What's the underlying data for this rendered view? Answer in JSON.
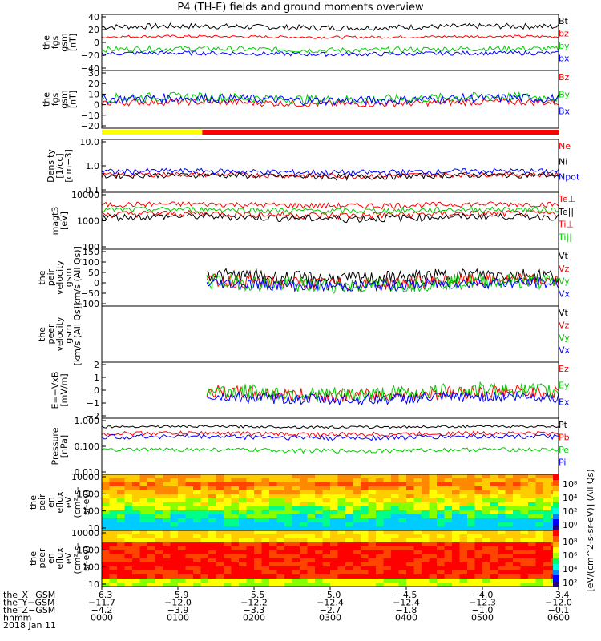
{
  "title": "P4 (TH-E) fields and ground moments overview",
  "chart_data": [
    {
      "type": "line",
      "ylabel": [
        "the",
        "fgs",
        "gsm",
        "[nT]"
      ],
      "ylim": [
        -40,
        40
      ],
      "yticks": [
        "40",
        "20",
        "0",
        "−20",
        "−40"
      ],
      "legend": [
        {
          "name": "Bt",
          "color": "#000000"
        },
        {
          "name": "bz",
          "color": "#ff0000"
        },
        {
          "name": "by",
          "color": "#00cc00"
        },
        {
          "name": "bx",
          "color": "#0000ff"
        }
      ],
      "series": [
        {
          "name": "Bt",
          "base": 22,
          "amp": 4
        },
        {
          "name": "bz",
          "base": 8,
          "amp": 2
        },
        {
          "name": "by",
          "base": -10,
          "amp": 4
        },
        {
          "name": "bx",
          "base": -16,
          "amp": 3
        }
      ]
    },
    {
      "type": "line",
      "ylabel": [
        "the",
        "fgs",
        "gsm",
        "[nT]"
      ],
      "ylim": [
        -20,
        30
      ],
      "yticks": [
        "30",
        "20",
        "10",
        "0",
        "−10",
        "−20"
      ],
      "legend": [
        {
          "name": "Bz",
          "color": "#ff0000"
        },
        {
          "name": "By",
          "color": "#00cc00"
        },
        {
          "name": "Bx",
          "color": "#0000ff"
        }
      ],
      "series": [
        {
          "name": "Bz",
          "base": 2,
          "amp": 3
        },
        {
          "name": "By",
          "base": 6,
          "amp": 4
        },
        {
          "name": "Bx",
          "base": 5,
          "amp": 4
        }
      ]
    },
    {
      "type": "line",
      "log": true,
      "ylabel": [
        "Density",
        "[1/cc]",
        "[cm−3]"
      ],
      "ylim": [
        0.1,
        10
      ],
      "yticks": [
        "10.0",
        "1.0",
        "0.1"
      ],
      "legend": [
        {
          "name": "Ne",
          "color": "#ff0000"
        },
        {
          "name": "Ni",
          "color": "#000000"
        },
        {
          "name": "Npot",
          "color": "#0000ff"
        }
      ],
      "series": [
        {
          "name": "Ne",
          "base": 0.45,
          "amp": 0.1
        },
        {
          "name": "Ni",
          "base": 0.42,
          "amp": 0.1
        },
        {
          "name": "Npot",
          "base": 0.6,
          "amp": 0.15
        }
      ]
    },
    {
      "type": "line",
      "log": true,
      "ylabel": [
        "magt3",
        "[eV]"
      ],
      "ylim": [
        40,
        10000
      ],
      "yticks": [
        "10000",
        "1000",
        "100"
      ],
      "legend": [
        {
          "name": "Te⊥",
          "color": "#ff0000"
        },
        {
          "name": "Te||",
          "color": "#000000"
        },
        {
          "name": "Ti⊥",
          "color": "#ff0000"
        },
        {
          "name": "Ti||",
          "color": "#00cc00"
        }
      ],
      "series": [
        {
          "name": "Ti⊥",
          "base": 3000,
          "amp": 800
        },
        {
          "name": "Te⊥",
          "base": 1200,
          "amp": 400
        },
        {
          "name": "Te||",
          "base": 900,
          "amp": 300
        },
        {
          "name": "Ti||",
          "base": 1800,
          "amp": 500
        }
      ]
    },
    {
      "type": "line",
      "ylabel": [
        "the",
        "peir",
        "velocity",
        "gsm",
        "[km/s (All Qs)]"
      ],
      "ylim": [
        -100,
        150
      ],
      "yticks": [
        "150",
        "100",
        "50",
        "0",
        "−50",
        "−100"
      ],
      "legend": [
        {
          "name": "Vt",
          "color": "#000000"
        },
        {
          "name": "Vz",
          "color": "#ff0000"
        },
        {
          "name": "Vy",
          "color": "#00cc00"
        },
        {
          "name": "Vx",
          "color": "#0000ff"
        }
      ],
      "series": [
        {
          "name": "Vt",
          "base": 30,
          "amp": 30
        },
        {
          "name": "Vz",
          "base": 5,
          "amp": 30
        },
        {
          "name": "Vy",
          "base": 0,
          "amp": 35
        },
        {
          "name": "Vx",
          "base": -5,
          "amp": 25
        }
      ]
    },
    {
      "type": "line",
      "ylabel": [
        "the",
        "peer",
        "velocity",
        "gsm",
        "[km/s (All Qs)]"
      ],
      "ylim": [
        -100,
        150
      ],
      "yticks": [],
      "legend": [
        {
          "name": "Vt",
          "color": "#000000"
        },
        {
          "name": "Vz",
          "color": "#ff0000"
        },
        {
          "name": "Vy",
          "color": "#00cc00"
        },
        {
          "name": "Vx",
          "color": "#0000ff"
        }
      ],
      "series": []
    },
    {
      "type": "line",
      "ylabel": [
        "E=−VxB",
        "[mV/m]"
      ],
      "ylim": [
        -2,
        3
      ],
      "yticks": [
        "2",
        "1",
        "0",
        "−1",
        "−2"
      ],
      "legend": [
        {
          "name": "Ez",
          "color": "#ff0000"
        },
        {
          "name": "Ey",
          "color": "#00cc00"
        },
        {
          "name": "Ex",
          "color": "#0000ff"
        }
      ],
      "series": [
        {
          "name": "Ez",
          "base": 0.2,
          "amp": 0.6
        },
        {
          "name": "Ey",
          "base": 0.3,
          "amp": 0.7
        },
        {
          "name": "Ex",
          "base": -0.2,
          "amp": 0.5
        }
      ]
    },
    {
      "type": "line",
      "log": true,
      "ylabel": [
        "Pressure",
        "[nPa]"
      ],
      "ylim": [
        0.001,
        1
      ],
      "yticks": [
        "1.000",
        "0.100",
        "0.010"
      ],
      "legend": [
        {
          "name": "Pt",
          "color": "#000000"
        },
        {
          "name": "Pb",
          "color": "#ff0000"
        },
        {
          "name": "Pe",
          "color": "#00cc00"
        },
        {
          "name": "Pi",
          "color": "#0000ff"
        }
      ],
      "series": [
        {
          "name": "Pt",
          "base": 0.35,
          "amp": 0.05
        },
        {
          "name": "Pb",
          "base": 0.15,
          "amp": 0.04
        },
        {
          "name": "Pi",
          "base": 0.1,
          "amp": 0.03
        },
        {
          "name": "Pe",
          "base": 0.02,
          "amp": 0.005
        }
      ]
    },
    {
      "type": "heatmap",
      "ylabel": [
        "the",
        "peir",
        "en",
        "eflux",
        "eV",
        "(cm²-s-",
        "sr-eV)"
      ],
      "ylim": [
        5,
        30000
      ],
      "yticks": [
        "10000",
        "1000",
        "100",
        "10"
      ]
    },
    {
      "type": "heatmap",
      "ylabel": [
        "the",
        "peer",
        "en",
        "eflux",
        "eV",
        "(cm²-s-",
        "sr-eV)"
      ],
      "ylim": [
        5,
        30000
      ],
      "yticks": [
        "10000",
        "1000",
        "100",
        "10"
      ]
    }
  ],
  "colorbar": {
    "label": "[eV/(cm^2-s-sr-eV)] (All Qs)",
    "upper_ticks": [
      "10⁸",
      "10⁴",
      "10²",
      "10⁰"
    ],
    "lower_ticks": [
      "10⁸",
      "10⁶",
      "10⁴",
      "10²"
    ]
  },
  "xaxis": {
    "hhmm": [
      "0000",
      "0100",
      "0200",
      "0300",
      "0400",
      "0500",
      "0600"
    ],
    "rows": [
      {
        "label": "the_X−GSM",
        "values": [
          "−6.3",
          "−5.9",
          "−5.5",
          "−5.0",
          "−4.5",
          "−4.0",
          "−3.4"
        ]
      },
      {
        "label": "the_Y−GSM",
        "values": [
          "−11.7",
          "−12.0",
          "−12.2",
          "−12.4",
          "−12.4",
          "−12.3",
          "−12.0"
        ]
      },
      {
        "label": "the_Z−GSM",
        "values": [
          "−4.2",
          "−3.9",
          "−3.3",
          "−2.7",
          "−1.8",
          "−1.0",
          "−0.1"
        ]
      },
      {
        "label": "hhmm",
        "values": [
          "0000",
          "0100",
          "0200",
          "0300",
          "0400",
          "0500",
          "0600"
        ]
      }
    ],
    "date": "2018 Jan 11"
  },
  "status_bar": {
    "segments": [
      {
        "color": "#ffff00",
        "from": 0,
        "to": 0.22
      },
      {
        "color": "#ff0000",
        "from": 0.22,
        "to": 1
      }
    ]
  }
}
